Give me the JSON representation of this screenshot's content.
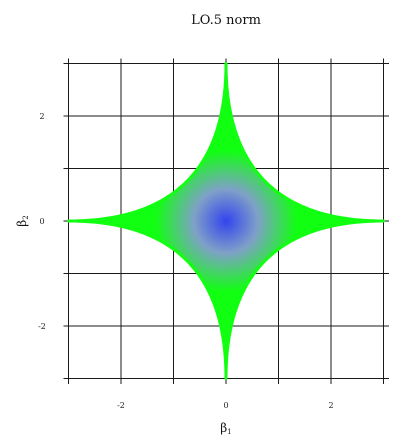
{
  "chart_data": {
    "type": "area",
    "title": "LO.5 norm",
    "xlabel": "β",
    "xlabel_sub": "1",
    "ylabel": "β",
    "ylabel_sub": "2",
    "xlim": [
      -3,
      3
    ],
    "ylim": [
      -3,
      3
    ],
    "x_ticks": [
      -2,
      0,
      2
    ],
    "x_tick_labels": [
      "-2",
      "0",
      "2"
    ],
    "y_ticks": [
      -2,
      0,
      2
    ],
    "y_tick_labels": [
      "-2",
      "0",
      "2"
    ],
    "grid": true,
    "norm_p": 0.5,
    "norm_radius": 3,
    "series": [
      {
        "values": [
          {
            "x": 3,
            "y": 0
          },
          {
            "x": 1.02,
            "y": 0.13
          },
          {
            "x": 0.75,
            "y": 0.75
          },
          {
            "x": 0.13,
            "y": 1.02
          },
          {
            "x": 0,
            "y": 3
          },
          {
            "x": -0.13,
            "y": 1.02
          },
          {
            "x": -0.75,
            "y": 0.75
          },
          {
            "x": -1.02,
            "y": 0.13
          },
          {
            "x": -3,
            "y": 0
          },
          {
            "x": -1.02,
            "y": -0.13
          },
          {
            "x": -0.75,
            "y": -0.75
          },
          {
            "x": -0.13,
            "y": -1.02
          },
          {
            "x": 0,
            "y": -3
          },
          {
            "x": 0.13,
            "y": -1.02
          },
          {
            "x": 0.75,
            "y": -0.75
          },
          {
            "x": 1.02,
            "y": -0.13
          }
        ]
      }
    ],
    "colors": {
      "center": "#3344ee",
      "edge": "#11ff11",
      "grid": "#1a1a1a",
      "background": "#ffffff"
    }
  }
}
